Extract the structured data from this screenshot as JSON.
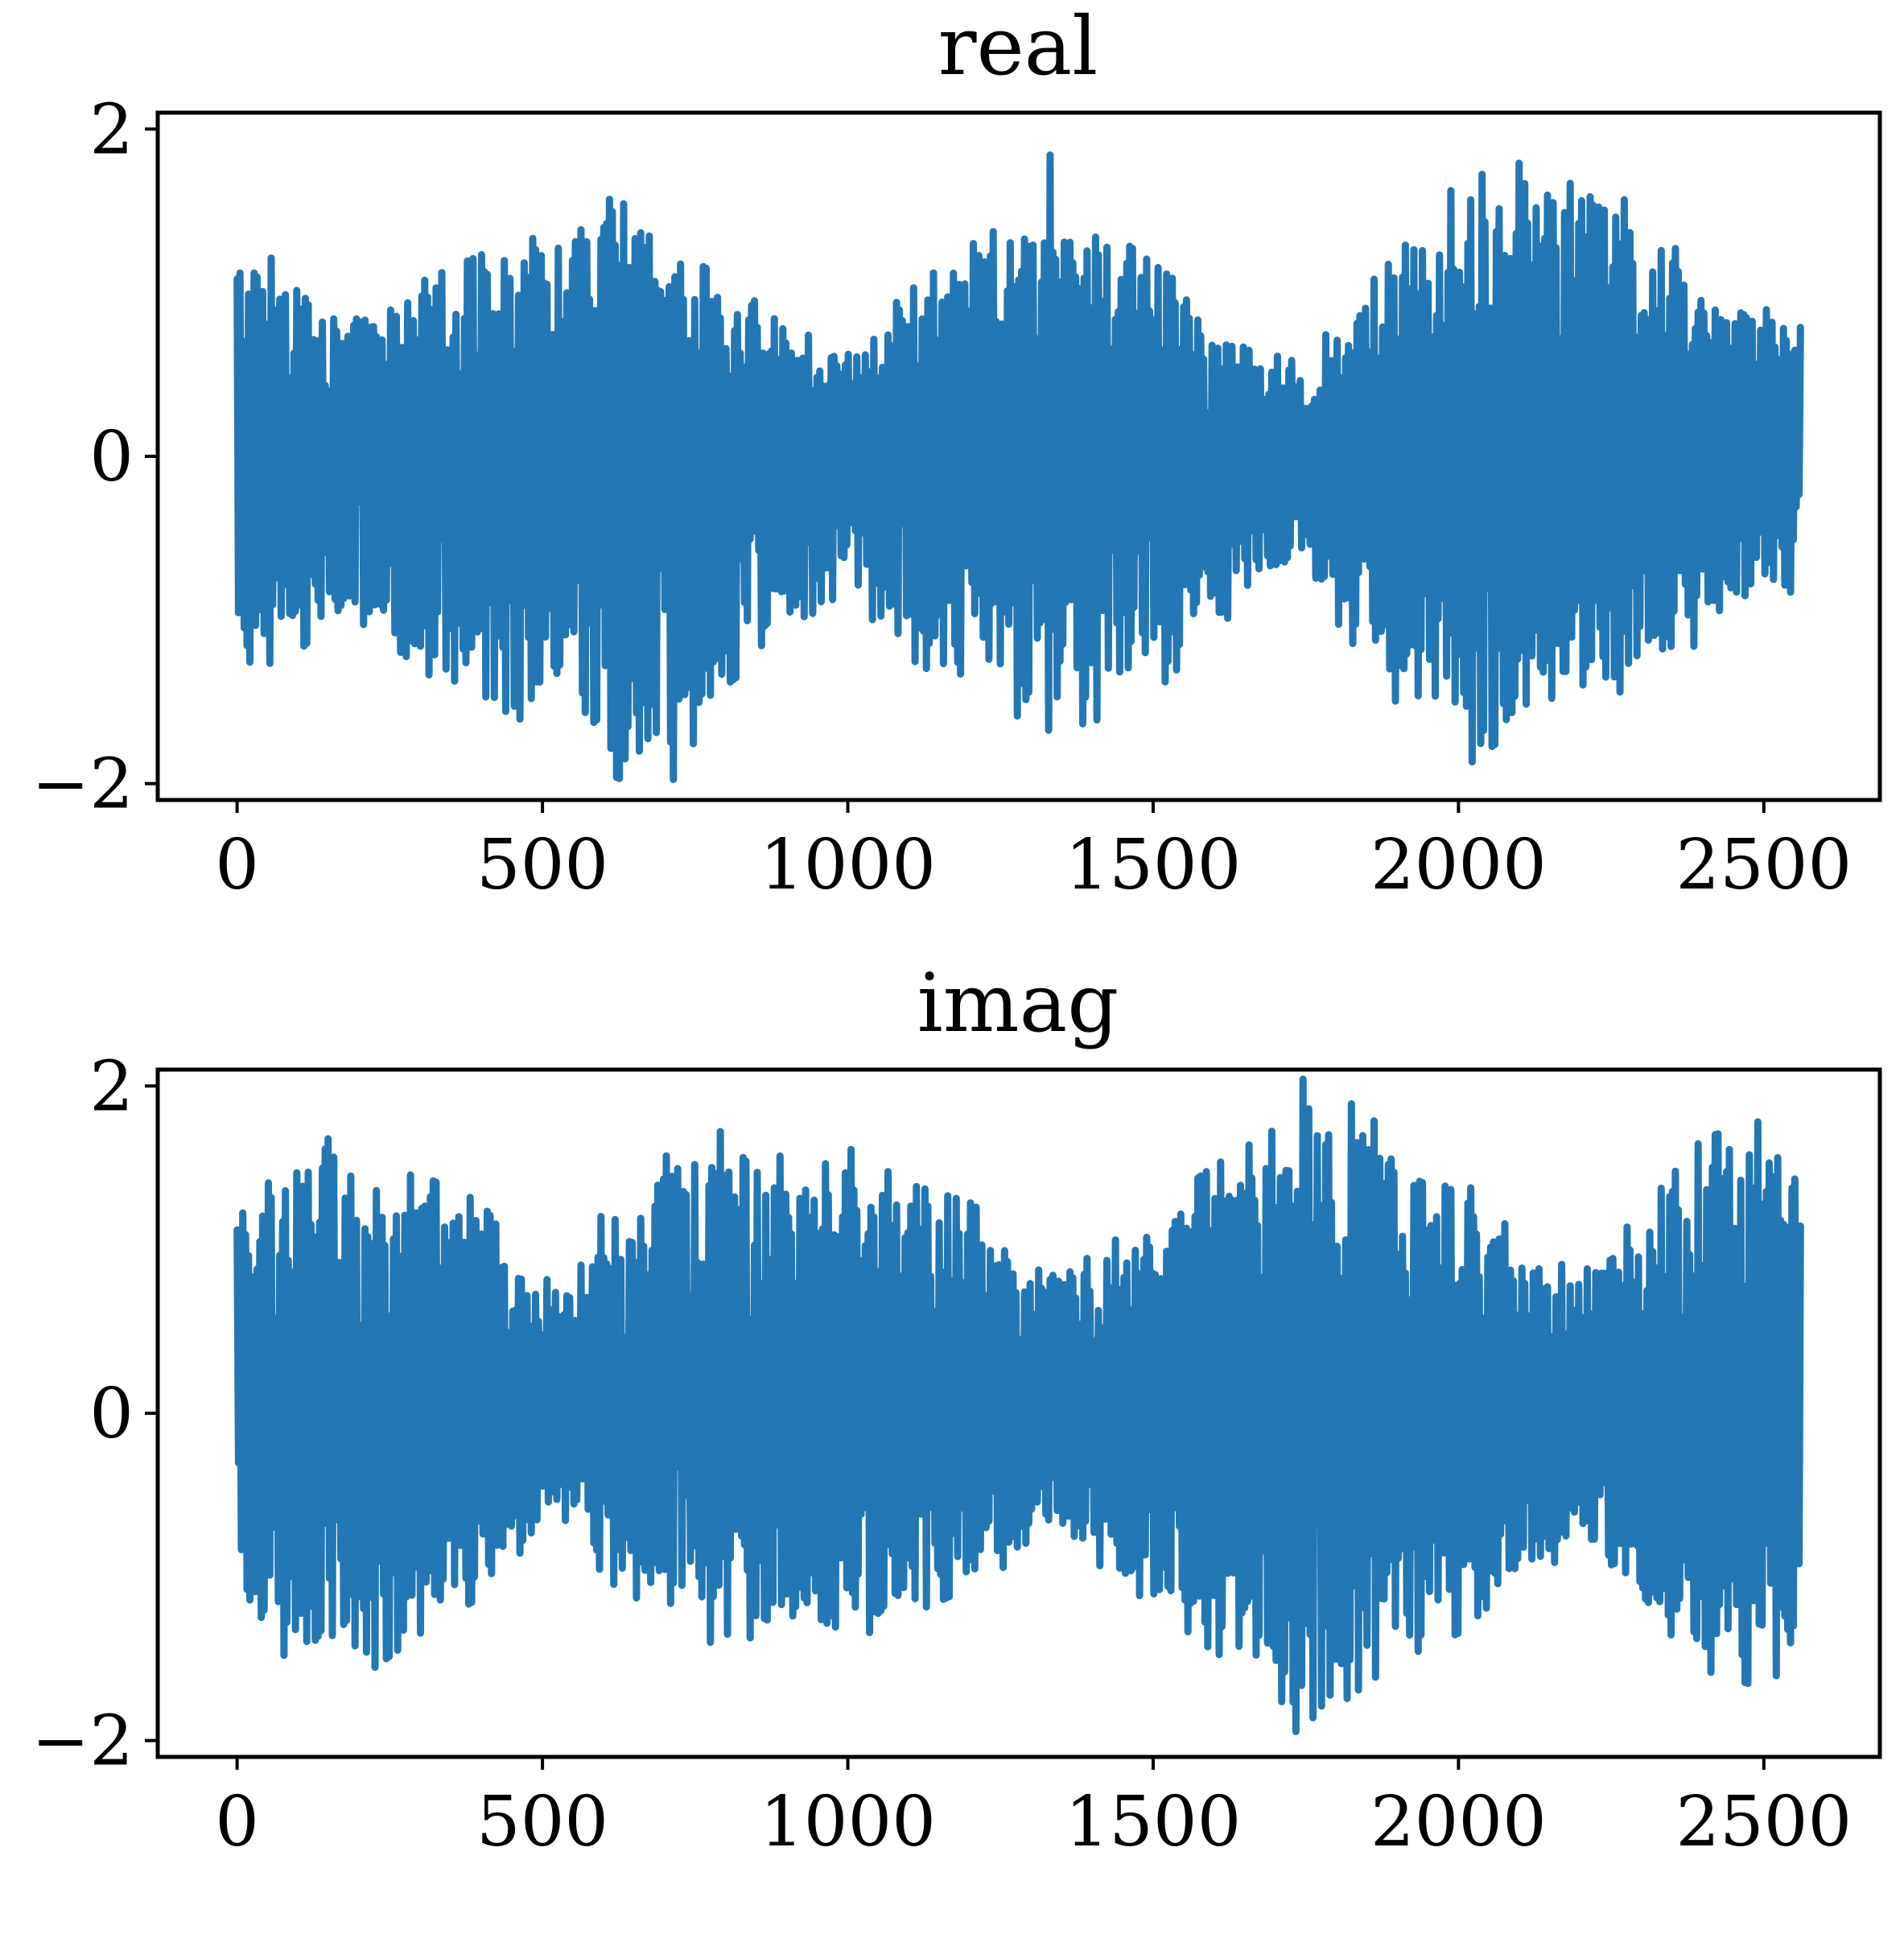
{
  "chart_data": [
    {
      "type": "line",
      "title": "real",
      "xlabel": "",
      "ylabel": "",
      "xlim": [
        -130,
        2690
      ],
      "ylim": [
        -2.1,
        2.1
      ],
      "xticks": [
        0,
        500,
        1000,
        1500,
        2000,
        2500
      ],
      "yticks": [
        2,
        0,
        -2
      ],
      "xtick_labels": [
        "0",
        "500",
        "1000",
        "1500",
        "2000",
        "2500"
      ],
      "ytick_labels": [
        "2",
        "0",
        "−2"
      ],
      "grid": false,
      "color": "#2377b4",
      "series": [
        {
          "n_points": 2560,
          "x_range": [
            0,
            2560
          ],
          "envelope": {
            "x": [
              0,
              20,
              60,
              120,
              200,
              300,
              400,
              500,
              560,
              620,
              700,
              800,
              900,
              960,
              1000,
              1100,
              1200,
              1300,
              1320,
              1400,
              1500,
              1600,
              1700,
              1750,
              1800,
              1900,
              2000,
              2050,
              2100,
              2200,
              2300,
              2400,
              2500,
              2560
            ],
            "upper": [
              1.2,
              1.1,
              1.25,
              0.8,
              0.8,
              0.95,
              1.1,
              1.3,
              1.35,
              1.6,
              1.2,
              1.05,
              0.75,
              0.6,
              0.6,
              0.9,
              1.15,
              1.35,
              1.7,
              1.3,
              1.05,
              0.8,
              0.55,
              0.5,
              0.75,
              1.1,
              1.5,
              1.55,
              1.6,
              1.65,
              1.3,
              1.0,
              0.8,
              0.8
            ],
            "lower": [
              -1.0,
              -1.3,
              -1.2,
              -1.0,
              -0.9,
              -1.15,
              -1.45,
              -1.6,
              -1.75,
              -1.75,
              -1.85,
              -1.25,
              -1.0,
              -0.9,
              -0.75,
              -1.1,
              -1.3,
              -1.45,
              -1.5,
              -1.45,
              -1.3,
              -0.95,
              -0.65,
              -0.55,
              -0.9,
              -1.35,
              -1.6,
              -1.75,
              -1.55,
              -1.35,
              -1.25,
              -1.0,
              -0.85,
              -0.7
            ]
          }
        }
      ]
    },
    {
      "type": "line",
      "title": "imag",
      "xlabel": "",
      "ylabel": "",
      "xlim": [
        -130,
        2690
      ],
      "ylim": [
        -2.1,
        2.1
      ],
      "xticks": [
        0,
        500,
        1000,
        1500,
        2000,
        2500
      ],
      "yticks": [
        2,
        0,
        -2
      ],
      "xtick_labels": [
        "0",
        "500",
        "1000",
        "1500",
        "2000",
        "2500"
      ],
      "ytick_labels": [
        "2",
        "0",
        "−2"
      ],
      "grid": false,
      "color": "#2377b4",
      "series": [
        {
          "n_points": 2560,
          "x_range": [
            0,
            2560
          ],
          "envelope": {
            "x": [
              0,
              20,
              60,
              100,
              150,
              200,
              300,
              400,
              480,
              560,
              600,
              700,
              800,
              900,
              1000,
              1100,
              1200,
              1300,
              1320,
              1400,
              1500,
              1600,
              1700,
              1750,
              1800,
              1900,
              2000,
              2100,
              2200,
              2300,
              2350,
              2400,
              2500,
              2560
            ],
            "upper": [
              1.0,
              1.2,
              1.45,
              1.55,
              1.6,
              1.3,
              1.3,
              1.15,
              0.75,
              0.85,
              1.1,
              1.4,
              1.55,
              1.5,
              1.45,
              1.25,
              1.15,
              0.9,
              0.8,
              0.85,
              1.1,
              1.35,
              1.55,
              1.85,
              1.75,
              1.5,
              1.3,
              0.95,
              0.75,
              1.1,
              1.3,
              1.5,
              1.6,
              1.4
            ],
            "lower": [
              -0.5,
              -1.2,
              -1.3,
              -1.35,
              -1.4,
              -1.45,
              -1.2,
              -1.0,
              -0.7,
              -0.6,
              -0.9,
              -1.1,
              -1.3,
              -1.35,
              -1.25,
              -1.1,
              -0.95,
              -0.75,
              -0.6,
              -0.8,
              -1.05,
              -1.3,
              -1.5,
              -1.85,
              -1.6,
              -1.35,
              -1.2,
              -0.9,
              -0.75,
              -1.05,
              -1.3,
              -1.4,
              -1.5,
              -1.3
            ]
          }
        }
      ]
    }
  ]
}
